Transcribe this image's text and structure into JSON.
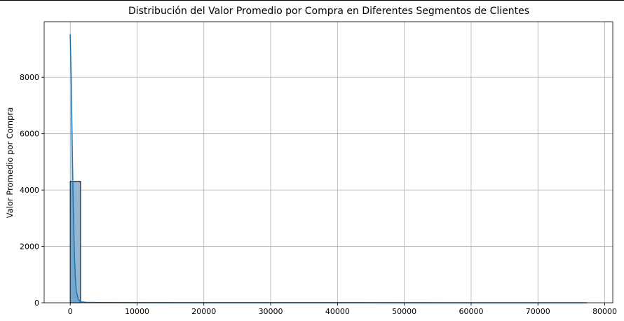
{
  "chart_data": {
    "type": "bar",
    "title": "Distribución del Valor Promedio por Compra en Diferentes Segmentos de Clientes",
    "xlabel": "",
    "ylabel": "Valor Promedio por Compra",
    "xlim": [
      -3900,
      81200
    ],
    "ylim": [
      0,
      9970
    ],
    "x_ticks": [
      "0",
      "10000",
      "20000",
      "30000",
      "40000",
      "50000",
      "60000",
      "70000",
      "80000"
    ],
    "y_ticks": [
      "0",
      "2000",
      "4000",
      "6000",
      "8000"
    ],
    "grid": true,
    "bin_width": 1550,
    "bins": [
      {
        "x0": 0,
        "x1": 1550,
        "count": 4310
      }
    ],
    "kde": {
      "x": [
        0,
        150,
        300,
        450,
        600,
        750,
        900,
        1200,
        1500,
        2500,
        5000,
        20000,
        40000,
        60000,
        77300
      ],
      "y": [
        9530,
        7900,
        5600,
        3500,
        1900,
        950,
        420,
        120,
        40,
        12,
        6,
        3,
        2,
        1,
        1
      ]
    },
    "colors": {
      "bar_fill": "#94b6d2",
      "bar_edge": "#000000",
      "kde_line": "#1f77b4",
      "grid": "#b0b0b0"
    }
  }
}
